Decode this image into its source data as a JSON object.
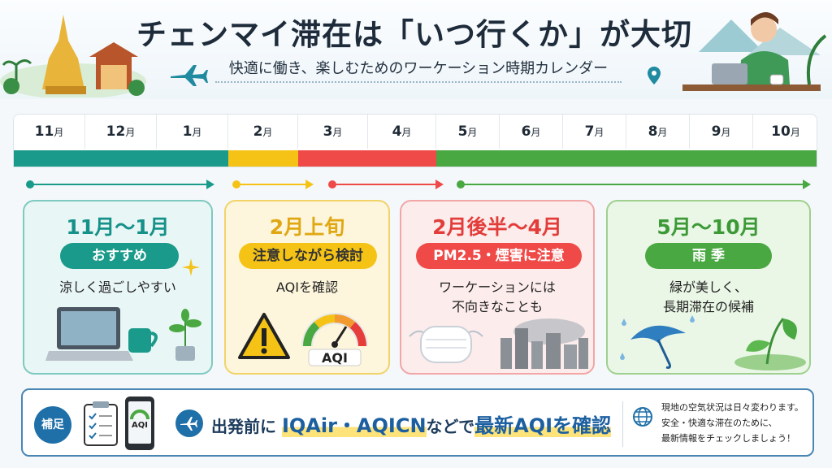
{
  "header": {
    "title": "チェンマイ滞在は「いつ行くか」が大切",
    "subtitle": "快適に働き、楽しむためのワーケーション時期カレンダー"
  },
  "months": [
    "11",
    "12",
    "1",
    "2",
    "3",
    "4",
    "5",
    "6",
    "7",
    "8",
    "9",
    "10"
  ],
  "month_unit": "月",
  "colors": {
    "teal": "#1a9a8a",
    "yellow": "#f5c316",
    "red": "#ef4a48",
    "green": "#4aa842"
  },
  "cards": [
    {
      "title": "11月～1月",
      "pill": "おすすめ",
      "desc1": "涼しく過ごしやすい",
      "desc2": ""
    },
    {
      "title": "2月上旬",
      "pill": "注意しながら検討",
      "desc1": "AQIを確認",
      "desc2": ""
    },
    {
      "title": "2月後半～4月",
      "pill": "PM2.5・煙害に注意",
      "desc1": "ワーケーションには",
      "desc2": "不向きなことも"
    },
    {
      "title": "5月～10月",
      "pill": "雨 季",
      "desc1": "緑が美しく、",
      "desc2": "長期滞在の候補"
    }
  ],
  "gauge_label": "AQI",
  "note": {
    "badge": "補足",
    "prefix": "出発前に",
    "highlight": "IQAir・AQICN",
    "middle": "などで",
    "highlight2": "最新AQIを確認",
    "phone_label": "AQI",
    "side_lines": [
      "現地の空気状況は日々変わります。",
      "安全・快適な滞在のために、",
      "最新情報をチェックしましょう！"
    ]
  }
}
